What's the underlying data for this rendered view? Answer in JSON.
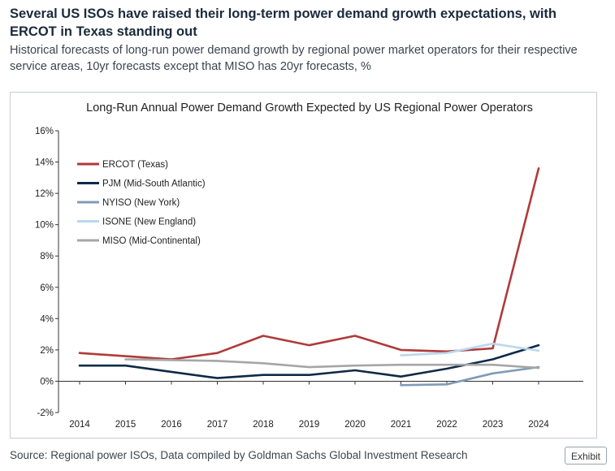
{
  "header": {
    "headline": "Several US ISOs have raised their long-term power demand growth expectations, with ERCOT in Texas standing out",
    "subhead": "Historical forecasts of long-run power demand growth by regional power market operators for their respective service areas, 10yr forecasts except that MISO has 20yr forecasts, %"
  },
  "footer": {
    "source": "Source: Regional power ISOs, Data compiled by Goldman Sachs Global Investment Research",
    "exhibit_label": "Exhibit"
  },
  "chart_data": {
    "type": "line",
    "title": "Long-Run Annual Power Demand Growth Expected by US Regional Power Operators",
    "xlabel": "",
    "ylabel": "",
    "x": [
      "2014",
      "2015",
      "2016",
      "2017",
      "2018",
      "2019",
      "2020",
      "2021",
      "2022",
      "2023",
      "2024"
    ],
    "ylim": [
      -2,
      16
    ],
    "yticks": [
      -2,
      0,
      2,
      4,
      6,
      8,
      10,
      12,
      14,
      16
    ],
    "ytick_labels": [
      "-2%",
      "0%",
      "2%",
      "4%",
      "6%",
      "8%",
      "10%",
      "12%",
      "14%",
      "16%"
    ],
    "grid": false,
    "legend_position": "top-left",
    "series": [
      {
        "name": "ERCOT (Texas)",
        "color": "#b03a3a",
        "values": [
          1.8,
          1.6,
          1.4,
          1.8,
          2.9,
          2.3,
          2.9,
          2.0,
          1.9,
          2.1,
          13.6
        ]
      },
      {
        "name": "PJM (Mid-South Atlantic)",
        "color": "#0e2a47",
        "values": [
          1.0,
          1.0,
          0.6,
          0.2,
          0.4,
          0.4,
          0.7,
          0.3,
          0.8,
          1.4,
          2.3
        ]
      },
      {
        "name": "NYISO (New York)",
        "color": "#7f9bb8",
        "values": [
          null,
          null,
          null,
          null,
          null,
          null,
          null,
          -0.25,
          -0.2,
          0.5,
          0.9
        ]
      },
      {
        "name": "ISONE (New England)",
        "color": "#b9d8ee",
        "values": [
          null,
          null,
          null,
          null,
          null,
          null,
          null,
          1.65,
          1.8,
          2.4,
          1.95
        ]
      },
      {
        "name": "MISO (Mid-Continental)",
        "color": "#a6a6a6",
        "values": [
          null,
          1.4,
          1.35,
          1.3,
          1.15,
          0.9,
          1.0,
          1.05,
          1.05,
          1.05,
          0.85
        ]
      }
    ]
  }
}
